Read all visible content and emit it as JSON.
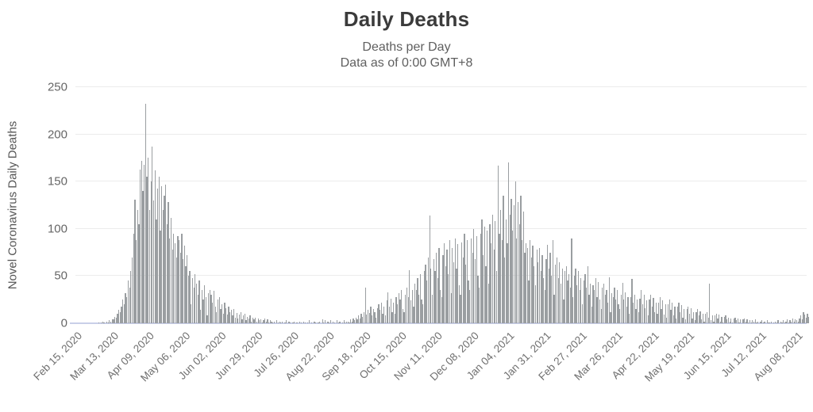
{
  "title": "Daily Deaths",
  "subtitle_line1": "Deaths per Day",
  "subtitle_line2": "Data as of 0:00 GMT+8",
  "colors": {
    "bar": "#9a9ea1",
    "gridline": "#ececec",
    "baseline": "#c9cfe8",
    "title_text": "#3b3b3b",
    "subtitle_text": "#5f5f5f",
    "tick_text": "#707070"
  },
  "chart_data": {
    "type": "bar",
    "title": "Daily Deaths",
    "subtitle": [
      "Deaths per Day",
      "Data as of 0:00 GMT+8"
    ],
    "xlabel": "",
    "ylabel": "Novel Coronavirus Daily Deaths",
    "ylim": [
      0,
      250
    ],
    "yticks": [
      0,
      50,
      100,
      150,
      200,
      250
    ],
    "grid": true,
    "legend": "none",
    "x_unit": "day",
    "x_start_label": "Feb 15, 2020",
    "x_tick_interval_days": 27,
    "x_tick_labels": [
      "Feb 15, 2020",
      "Mar 13, 2020",
      "Apr 09, 2020",
      "May 06, 2020",
      "Jun 02, 2020",
      "Jun 29, 2020",
      "Jul 26, 2020",
      "Aug 22, 2020",
      "Sep 18, 2020",
      "Oct 15, 2020",
      "Nov 11, 2020",
      "Dec 08, 2020",
      "Jan 04, 2021",
      "Jan 31, 2021",
      "Feb 27, 2021",
      "Mar 26, 2021",
      "Apr 22, 2021",
      "May 19, 2021",
      "Jun 15, 2021",
      "Jul 12, 2021",
      "Aug 08, 2021"
    ],
    "values": [
      0,
      0,
      0,
      0,
      0,
      0,
      0,
      0,
      0,
      0,
      0,
      0,
      0,
      0,
      0,
      0,
      0,
      1,
      0,
      1,
      2,
      1,
      0,
      2,
      1,
      3,
      2,
      4,
      4,
      7,
      6,
      10,
      14,
      12,
      18,
      25,
      20,
      32,
      28,
      45,
      38,
      55,
      70,
      95,
      131,
      88,
      120,
      105,
      163,
      172,
      140,
      168,
      232,
      155,
      175,
      120,
      150,
      187,
      130,
      162,
      110,
      143,
      155,
      98,
      145,
      120,
      135,
      147,
      105,
      128,
      90,
      112,
      78,
      95,
      85,
      70,
      92,
      88,
      75,
      95,
      68,
      82,
      60,
      72,
      50,
      55,
      20,
      48,
      38,
      52,
      42,
      30,
      45,
      14,
      35,
      25,
      40,
      28,
      8,
      32,
      35,
      30,
      22,
      34,
      18,
      12,
      25,
      28,
      15,
      20,
      10,
      22,
      16,
      9,
      18,
      12,
      14,
      8,
      15,
      6,
      11,
      5,
      9,
      12,
      4,
      8,
      10,
      3,
      7,
      5,
      8,
      2,
      6,
      4,
      6,
      2,
      5,
      3,
      4,
      1,
      3,
      5,
      2,
      4,
      1,
      3,
      2,
      1,
      2,
      0,
      3,
      1,
      2,
      1,
      2,
      0,
      1,
      3,
      0,
      2,
      1,
      0,
      1,
      2,
      0,
      1,
      0,
      2,
      1,
      0,
      2,
      1,
      0,
      1,
      3,
      0,
      1,
      0,
      2,
      1,
      0,
      1,
      2,
      0,
      4,
      1,
      3,
      0,
      2,
      1,
      3,
      0,
      2,
      1,
      0,
      3,
      1,
      2,
      0,
      1,
      3,
      1,
      2,
      2,
      1,
      4,
      2,
      5,
      3,
      6,
      4,
      8,
      5,
      10,
      7,
      12,
      38,
      9,
      14,
      11,
      18,
      8,
      15,
      12,
      6,
      16,
      20,
      14,
      22,
      10,
      18,
      8,
      24,
      33,
      18,
      26,
      12,
      22,
      10,
      28,
      20,
      32,
      25,
      35,
      15,
      12,
      30,
      38,
      28,
      56,
      24,
      35,
      18,
      42,
      35,
      48,
      30,
      52,
      25,
      20,
      55,
      62,
      45,
      70,
      114,
      58,
      30,
      68,
      55,
      75,
      48,
      80,
      35,
      28,
      72,
      85,
      60,
      78,
      52,
      88,
      32,
      80,
      65,
      90,
      58,
      84,
      40,
      30,
      86,
      70,
      95,
      62,
      88,
      45,
      35,
      90,
      75,
      100,
      68,
      92,
      50,
      38,
      95,
      110,
      72,
      102,
      60,
      98,
      42,
      105,
      85,
      115,
      78,
      108,
      55,
      167,
      95,
      120,
      88,
      135,
      70,
      110,
      85,
      170,
      115,
      132,
      98,
      125,
      150,
      90,
      128,
      105,
      135,
      88,
      118,
      75,
      85,
      80,
      45,
      88,
      70,
      82,
      60,
      40,
      78,
      65,
      80,
      55,
      72,
      48,
      35,
      68,
      83,
      58,
      75,
      50,
      88,
      30,
      62,
      70,
      48,
      65,
      42,
      58,
      25,
      55,
      60,
      45,
      52,
      38,
      90,
      28,
      50,
      58,
      40,
      55,
      35,
      48,
      20,
      45,
      52,
      38,
      60,
      30,
      42,
      18,
      40,
      35,
      48,
      28,
      44,
      25,
      15,
      38,
      42,
      30,
      35,
      22,
      49,
      12,
      32,
      28,
      38,
      25,
      35,
      20,
      15,
      30,
      43,
      25,
      33,
      18,
      28,
      10,
      28,
      47,
      22,
      30,
      15,
      25,
      12,
      26,
      35,
      20,
      30,
      16,
      24,
      8,
      25,
      30,
      18,
      27,
      12,
      22,
      10,
      22,
      28,
      15,
      24,
      9,
      20,
      6,
      20,
      25,
      14,
      22,
      8,
      18,
      5,
      18,
      22,
      12,
      19,
      6,
      15,
      4,
      15,
      18,
      10,
      16,
      5,
      12,
      3,
      12,
      15,
      8,
      13,
      4,
      10,
      2,
      10,
      12,
      6,
      42,
      3,
      8,
      2,
      8,
      10,
      5,
      9,
      2,
      7,
      1,
      7,
      8,
      4,
      6,
      2,
      5,
      1,
      5,
      6,
      3,
      5,
      1,
      4,
      0,
      4,
      5,
      2,
      4,
      1,
      3,
      1,
      3,
      2,
      4,
      1,
      2,
      0,
      2,
      3,
      1,
      2,
      0,
      3,
      1,
      1,
      2,
      0,
      1,
      2,
      1,
      3,
      0,
      2,
      1,
      3,
      1,
      2,
      4,
      1,
      3,
      2,
      5,
      2,
      4,
      3,
      2,
      5,
      8,
      4,
      12,
      9,
      6,
      10,
      7
    ]
  }
}
